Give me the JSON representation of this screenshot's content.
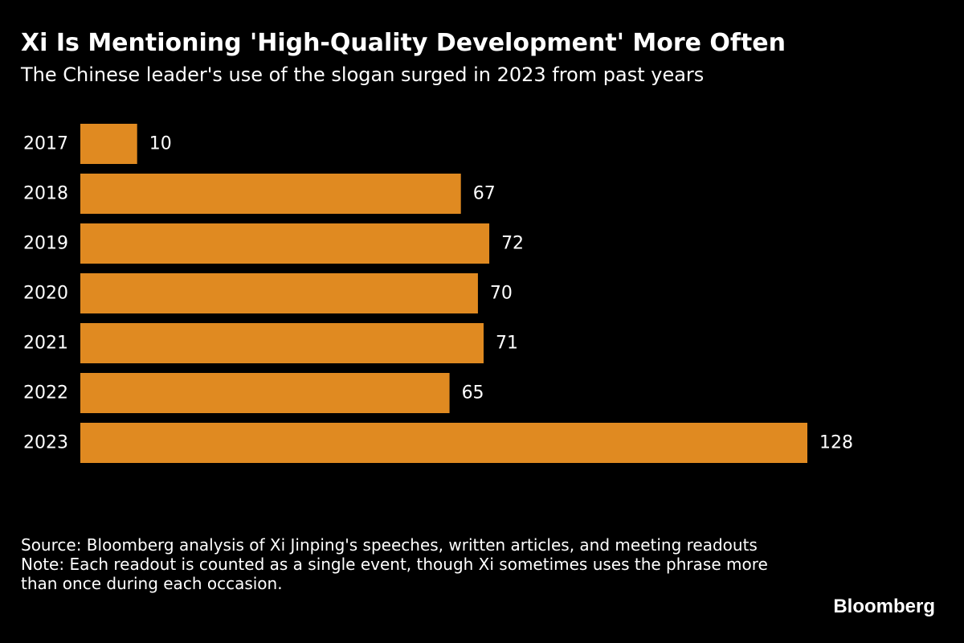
{
  "chart_data": {
    "type": "bar",
    "orientation": "horizontal",
    "title": "Xi Is Mentioning 'High-Quality Development' More Often",
    "subtitle": "The Chinese leader's use of the slogan surged in 2023 from past years",
    "categories": [
      "2017",
      "2018",
      "2019",
      "2020",
      "2021",
      "2022",
      "2023"
    ],
    "values": [
      10,
      67,
      72,
      70,
      71,
      65,
      128
    ],
    "xlabel": "",
    "ylabel": "",
    "xlim": [
      0,
      128
    ],
    "grid": false,
    "bar_color": "#E08A21"
  },
  "footnotes": {
    "source": "Source: Bloomberg analysis of Xi Jinping's speeches, written articles, and meeting readouts",
    "note": "Note: Each readout is counted as a single event, though Xi sometimes uses the phrase more than once during each occasion."
  },
  "brand": {
    "label": "Bloomberg"
  },
  "colors": {
    "background": "#000000",
    "text": "#ffffff",
    "bar": "#E08A21"
  }
}
